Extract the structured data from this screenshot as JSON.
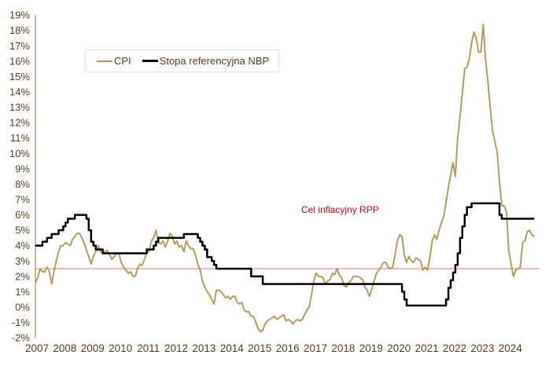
{
  "chart_data": {
    "type": "line",
    "title": "",
    "xlabel": "",
    "ylabel": "",
    "ylim": [
      -2,
      19
    ],
    "y_ticks": [
      "-2%",
      "-1%",
      "0%",
      "1%",
      "2%",
      "3%",
      "4%",
      "5%",
      "6%",
      "7%",
      "8%",
      "9%",
      "10%",
      "11%",
      "12%",
      "13%",
      "14%",
      "15%",
      "16%",
      "17%",
      "18%",
      "19%"
    ],
    "x_ticks": [
      "2007",
      "2008",
      "2009",
      "2010",
      "2011",
      "2012",
      "2013",
      "2014",
      "2015",
      "2016",
      "2017",
      "2018",
      "2019",
      "2020",
      "2021",
      "2022",
      "2023",
      "2024"
    ],
    "x_start": "2007-01",
    "frequency": "monthly",
    "legend_position": "top-left",
    "grid": false,
    "series": [
      {
        "name": "CPI",
        "color": "#b89b60",
        "values": [
          1.6,
          1.9,
          2.5,
          2.3,
          2.3,
          2.6,
          2.3,
          1.5,
          2.3,
          3.0,
          3.6,
          4.0,
          4.0,
          4.2,
          4.1,
          4.0,
          4.4,
          4.6,
          4.8,
          4.8,
          4.5,
          4.2,
          3.7,
          3.3,
          2.8,
          3.3,
          3.6,
          4.0,
          3.6,
          3.5,
          3.6,
          3.7,
          3.4,
          3.1,
          3.3,
          3.5,
          3.5,
          2.9,
          2.6,
          2.4,
          2.2,
          2.3,
          2.0,
          2.0,
          2.5,
          2.8,
          2.7,
          3.1,
          3.6,
          3.6,
          4.3,
          4.5,
          5.0,
          4.2,
          4.1,
          4.3,
          3.9,
          4.3,
          4.8,
          4.6,
          4.1,
          4.3,
          3.9,
          4.0,
          3.6,
          4.3,
          4.0,
          3.8,
          3.8,
          3.4,
          2.8,
          2.4,
          1.7,
          1.3,
          1.0,
          0.8,
          0.5,
          0.2,
          1.1,
          1.1,
          1.0,
          0.8,
          0.6,
          0.7,
          0.5,
          0.7,
          0.7,
          0.3,
          0.2,
          0.3,
          -0.2,
          -0.3,
          -0.3,
          -0.6,
          -0.6,
          -1.0,
          -1.4,
          -1.6,
          -1.5,
          -1.1,
          -0.9,
          -0.8,
          -0.7,
          -0.6,
          -0.8,
          -0.7,
          -0.6,
          -0.5,
          -0.9,
          -0.8,
          -0.9,
          -1.1,
          -0.9,
          -0.8,
          -0.9,
          -0.8,
          -0.5,
          -0.2,
          0.0,
          0.8,
          1.7,
          2.2,
          2.0,
          2.0,
          1.9,
          1.5,
          1.7,
          1.8,
          2.2,
          2.1,
          2.5,
          2.1,
          1.9,
          1.4,
          1.3,
          1.6,
          1.7,
          2.0,
          2.0,
          2.0,
          1.9,
          1.8,
          1.3,
          1.1,
          0.7,
          1.2,
          1.7,
          2.2,
          2.4,
          2.6,
          2.9,
          2.9,
          2.6,
          2.5,
          2.6,
          3.4,
          4.3,
          4.7,
          4.6,
          3.4,
          2.9,
          3.3,
          3.0,
          2.9,
          3.2,
          3.1,
          3.0,
          2.4,
          2.6,
          2.4,
          3.2,
          4.3,
          4.7,
          4.4,
          5.0,
          5.5,
          5.9,
          6.8,
          7.8,
          8.6,
          9.4,
          8.5,
          11.0,
          12.4,
          13.9,
          15.5,
          15.6,
          16.1,
          17.2,
          17.9,
          17.5,
          16.6,
          16.6,
          18.4,
          16.1,
          14.7,
          13.0,
          11.5,
          10.8,
          10.1,
          8.2,
          6.6,
          6.6,
          6.2,
          3.7,
          2.8,
          2.0,
          2.4,
          2.5,
          2.6,
          4.2,
          4.3,
          4.9,
          5.0,
          4.7,
          4.6
        ]
      },
      {
        "name": "Stopa referencyjna NBP",
        "color": "#000000",
        "style": "step",
        "changes": [
          [
            "2007-01",
            4.0
          ],
          [
            "2007-04",
            4.25
          ],
          [
            "2007-06",
            4.5
          ],
          [
            "2007-08",
            4.75
          ],
          [
            "2007-11",
            5.0
          ],
          [
            "2008-01",
            5.25
          ],
          [
            "2008-02",
            5.5
          ],
          [
            "2008-03",
            5.75
          ],
          [
            "2008-06",
            6.0
          ],
          [
            "2008-11",
            5.75
          ],
          [
            "2008-12",
            5.0
          ],
          [
            "2009-01",
            4.25
          ],
          [
            "2009-02",
            4.0
          ],
          [
            "2009-03",
            3.75
          ],
          [
            "2009-06",
            3.5
          ],
          [
            "2011-01",
            3.75
          ],
          [
            "2011-04",
            4.0
          ],
          [
            "2011-05",
            4.25
          ],
          [
            "2011-06",
            4.5
          ],
          [
            "2012-05",
            4.75
          ],
          [
            "2012-11",
            4.5
          ],
          [
            "2012-12",
            4.25
          ],
          [
            "2013-01",
            4.0
          ],
          [
            "2013-02",
            3.75
          ],
          [
            "2013-03",
            3.25
          ],
          [
            "2013-05",
            3.0
          ],
          [
            "2013-06",
            2.75
          ],
          [
            "2013-07",
            2.5
          ],
          [
            "2014-10",
            2.0
          ],
          [
            "2015-03",
            1.5
          ],
          [
            "2020-03",
            1.0
          ],
          [
            "2020-04",
            0.5
          ],
          [
            "2020-05",
            0.1
          ],
          [
            "2021-10",
            0.5
          ],
          [
            "2021-11",
            1.25
          ],
          [
            "2021-12",
            1.75
          ],
          [
            "2022-01",
            2.25
          ],
          [
            "2022-02",
            2.75
          ],
          [
            "2022-03",
            3.5
          ],
          [
            "2022-04",
            4.5
          ],
          [
            "2022-05",
            5.25
          ],
          [
            "2022-06",
            6.0
          ],
          [
            "2022-07",
            6.5
          ],
          [
            "2022-09",
            6.75
          ],
          [
            "2023-09",
            6.0
          ],
          [
            "2023-10",
            5.75
          ],
          [
            "2024-12",
            5.75
          ]
        ]
      }
    ],
    "reference_line": {
      "label": "Cel inflacyjny RPP",
      "value": 2.5,
      "color": "#e07a7a",
      "label_color": "#d0021b"
    }
  }
}
